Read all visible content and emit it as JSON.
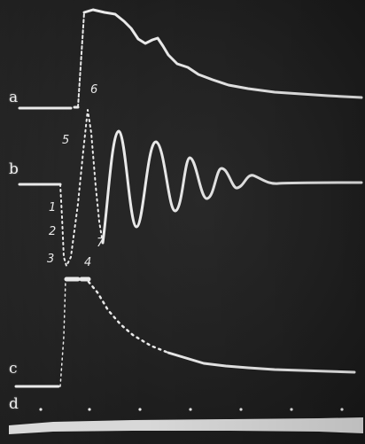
{
  "trace_labels": {
    "a": "a",
    "b": "b",
    "c": "c",
    "d": "d"
  },
  "point_labels": [
    "1",
    "2",
    "3",
    "4",
    "5",
    "6",
    "7"
  ],
  "trace_color": "#e9e9e9",
  "background_color": "#222222"
}
